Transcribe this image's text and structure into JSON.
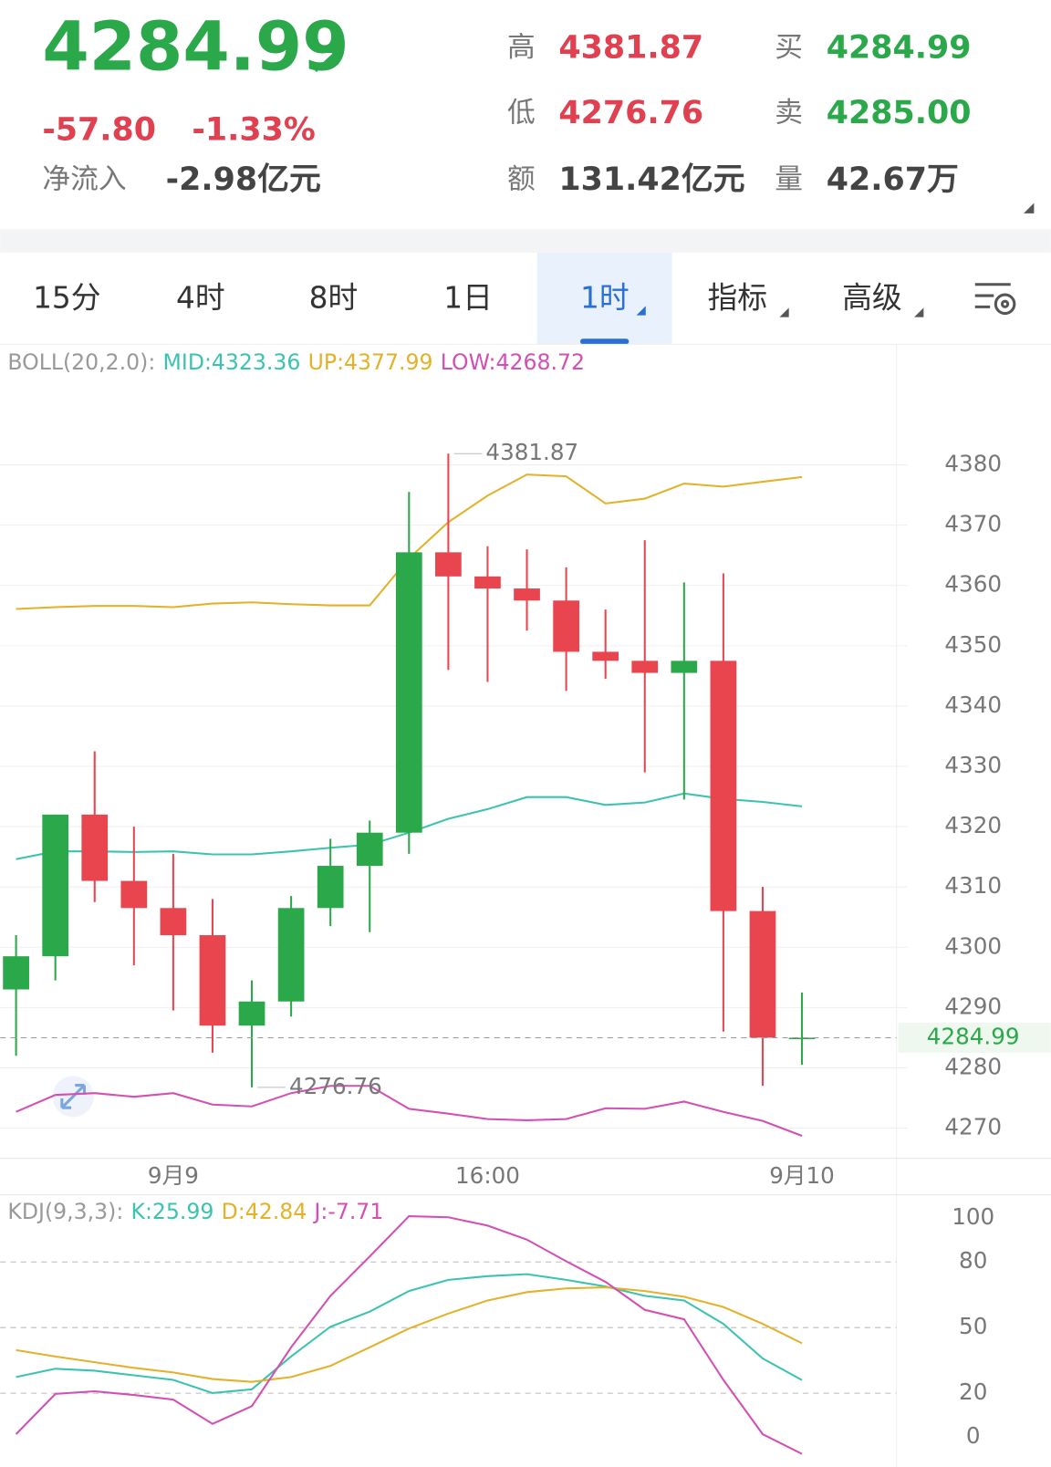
{
  "header": {
    "price": "4284.99",
    "change": "-57.80",
    "change_pct": "-1.33%",
    "inflow_label": "净流入",
    "inflow": "-2.98亿元",
    "stats": [
      {
        "label": "高",
        "value": "4381.87"
      },
      {
        "label": "低",
        "value": "4276.76"
      },
      {
        "label": "额",
        "value": "131.42亿元"
      },
      {
        "label": "买",
        "value": "4284.99"
      },
      {
        "label": "卖",
        "value": "4285.00"
      },
      {
        "label": "量",
        "value": "42.67万"
      }
    ]
  },
  "tabs": {
    "items": [
      "15分",
      "4时",
      "8时",
      "1日",
      "1时",
      "指标",
      "高级"
    ],
    "selected": 4
  },
  "price_chart": {
    "type": "candlestick",
    "categories": [
      null,
      null,
      null,
      null,
      "9月9",
      null,
      null,
      null,
      null,
      null,
      null,
      null,
      "16:00",
      null,
      null,
      null,
      null,
      null,
      null,
      null,
      "9月10"
    ],
    "open": [
      4293,
      4298.5,
      4322,
      4311,
      4306.5,
      4302,
      4287,
      4291,
      4306.5,
      4313.5,
      4319,
      4365.5,
      4361.5,
      4359.5,
      4357.5,
      4349,
      4347.5,
      4345.5,
      4347.5,
      4306,
      4284.99
    ],
    "close": [
      4298.5,
      4322,
      4311,
      4306.5,
      4302,
      4287,
      4291,
      4306.5,
      4313.5,
      4319,
      4365.5,
      4361.5,
      4359.5,
      4357.5,
      4349,
      4347.5,
      4345.5,
      4347.5,
      4306,
      4285,
      4284.99
    ],
    "high": [
      4302,
      4322,
      4332.5,
      4320,
      4315.5,
      4308,
      4294.5,
      4308.5,
      4318,
      4321,
      4375.5,
      4381.87,
      4366.5,
      4366,
      4363,
      4356,
      4367.5,
      4360.5,
      4362,
      4310,
      4292.5
    ],
    "low": [
      4282,
      4294.5,
      4307.5,
      4297,
      4289.5,
      4282.5,
      4276.76,
      4288.5,
      4303.5,
      4302.5,
      4315.5,
      4346,
      4344,
      4352.5,
      4342.5,
      4344.5,
      4329,
      4324.5,
      4286,
      4277,
      4280.5
    ],
    "up_color": "#2aa84a",
    "down_color": "#e8454f",
    "ylim": [
      4265,
      4400
    ],
    "yticks": [
      4270,
      4280,
      4290,
      4300,
      4310,
      4320,
      4330,
      4340,
      4350,
      4360,
      4370,
      4380
    ],
    "high_marker": 4381.87,
    "low_marker": 4276.76,
    "last_price": 4284.99,
    "boll": {
      "label": "BOLL(20,2.0):",
      "series": [
        {
          "name": "MID:4323.36",
          "color": "#3cc3b0",
          "values": [
            4314.6,
            4315.9,
            4315.9,
            4315.8,
            4315.9,
            4315.4,
            4315.4,
            4315.9,
            4316.5,
            4317,
            4319,
            4321.3,
            4322.9,
            4324.9,
            4324.9,
            4323.6,
            4324,
            4325.5,
            4324.6,
            4324.1,
            4323.36
          ]
        },
        {
          "name": "UP:4377.99",
          "color": "#e3b12a",
          "values": [
            4356.1,
            4356.4,
            4356.6,
            4356.6,
            4356.4,
            4357,
            4357.2,
            4356.9,
            4356.7,
            4356.7,
            4364.5,
            4370.5,
            4374.9,
            4378.4,
            4378.1,
            4373.6,
            4374.4,
            4376.9,
            4376.4,
            4377.2,
            4377.99
          ]
        },
        {
          "name": "LOW:4268.72",
          "color": "#d44fb5",
          "values": [
            4272.7,
            4275.5,
            4275.8,
            4275.2,
            4275.8,
            4273.9,
            4273.6,
            4275.8,
            4277,
            4277,
            4273.2,
            4272.4,
            4271.5,
            4271.3,
            4271.5,
            4273.3,
            4273.2,
            4274.4,
            4272.7,
            4271.2,
            4268.72
          ]
        }
      ]
    }
  },
  "kdj_chart": {
    "type": "line",
    "label": "KDJ(9,3,3):",
    "ylim": [
      -13.7,
      110.7
    ],
    "yticks": [
      0,
      20,
      50,
      80,
      100
    ],
    "series": [
      {
        "name": "K:25.99",
        "color": "#3cc3b0",
        "values": [
          27.4,
          31.2,
          30.3,
          28.2,
          26.1,
          20.1,
          21.8,
          36.8,
          50.4,
          57.3,
          66.7,
          71.8,
          73.5,
          74.4,
          71.8,
          68.8,
          64.5,
          62.4,
          51.7,
          35.9,
          25.99
        ]
      },
      {
        "name": "D:42.84",
        "color": "#e3b12a",
        "values": [
          39.7,
          36.8,
          34.2,
          31.6,
          29.5,
          26.5,
          25.2,
          27.4,
          32.5,
          41,
          49.6,
          56.4,
          62.4,
          66.2,
          67.9,
          68.4,
          66.7,
          64.1,
          59.4,
          51.7,
          42.84
        ]
      },
      {
        "name": "J:-7.71",
        "color": "#d44fb5",
        "values": [
          1.3,
          19.7,
          20.9,
          19.2,
          17.1,
          6,
          14.1,
          41,
          64.5,
          82.5,
          100.9,
          100.4,
          96.6,
          90.2,
          80.3,
          70.9,
          58.1,
          53.8,
          26.1,
          1.3,
          -7.71
        ]
      }
    ]
  }
}
